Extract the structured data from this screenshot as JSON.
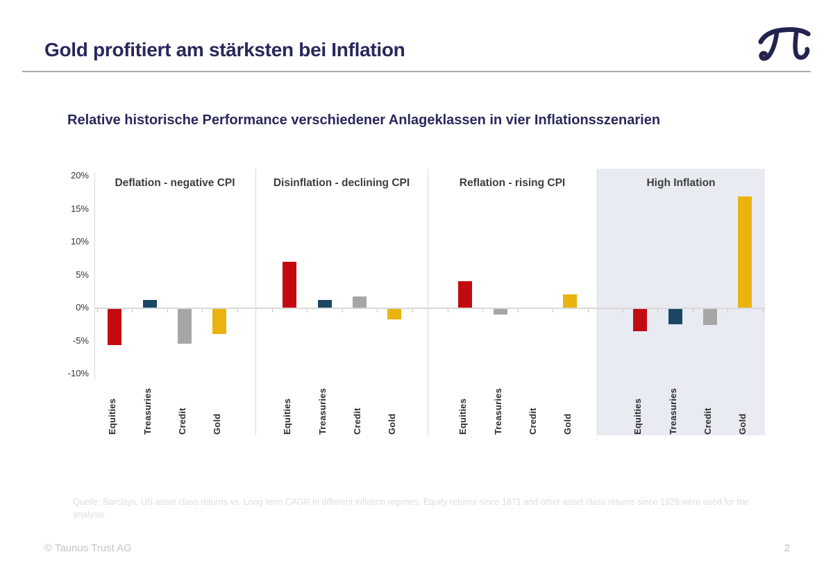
{
  "header": {
    "title": "Gold profitiert am stärksten bei Inflation",
    "logo": "taunus-trust-pi-monogram",
    "logo_color": "#23234f"
  },
  "subtitle": "Relative historische Performance verschiedener Anlageklassen in vier Inflationsszenarien",
  "chart_data": {
    "type": "bar",
    "title": "",
    "xlabel": "",
    "ylabel": "",
    "unit": "%",
    "ylim": [
      -10,
      20
    ],
    "yticks": [
      20,
      15,
      10,
      5,
      0,
      -5,
      -10
    ],
    "ytick_labels": [
      "20%",
      "15%",
      "10%",
      "5%",
      "0%",
      "-5%",
      "-10%"
    ],
    "grid": false,
    "legend": "none",
    "categories": [
      "Equities",
      "Treasuries",
      "Credit",
      "Gold"
    ],
    "panels": [
      {
        "title": "Deflation - negative CPI",
        "highlighted": false,
        "values": [
          -5.5,
          1.2,
          -5.3,
          -3.8
        ],
        "bar_colors": [
          "#c20b10",
          "#1b4763",
          "#a6a6a6",
          "#ebb30d"
        ]
      },
      {
        "title": "Disinflation - declining CPI",
        "highlighted": false,
        "values": [
          7.0,
          1.2,
          1.7,
          -1.6
        ],
        "bar_colors": [
          "#c20b10",
          "#1b4763",
          "#a6a6a6",
          "#ebb30d"
        ]
      },
      {
        "title": "Reflation - rising CPI",
        "highlighted": false,
        "values": [
          4.0,
          -0.8,
          0.0,
          2.0
        ],
        "bar_colors": [
          "#c20b10",
          "#a6a6a6",
          "#a6a6a6",
          "#ebb30d"
        ]
      },
      {
        "title": "High Inflation",
        "highlighted": true,
        "values": [
          -3.4,
          -2.3,
          -2.4,
          16.8
        ],
        "bar_colors": [
          "#c20b10",
          "#1b4763",
          "#a6a6a6",
          "#ebb30d"
        ]
      }
    ],
    "highlight_bg": "#e9ebf2",
    "axis_color": "#d9d9d9",
    "tick_color": "#c4c4c4"
  },
  "footnote": "Quelle: Barclays. US asset class returns vs. Long term CAGR in different inflation regimes. Equity returns since 1871 and other asset class returns since 1928 were used for the analysis.",
  "footer": {
    "copyright": "© Taunus Trust AG",
    "page_number": "2"
  }
}
